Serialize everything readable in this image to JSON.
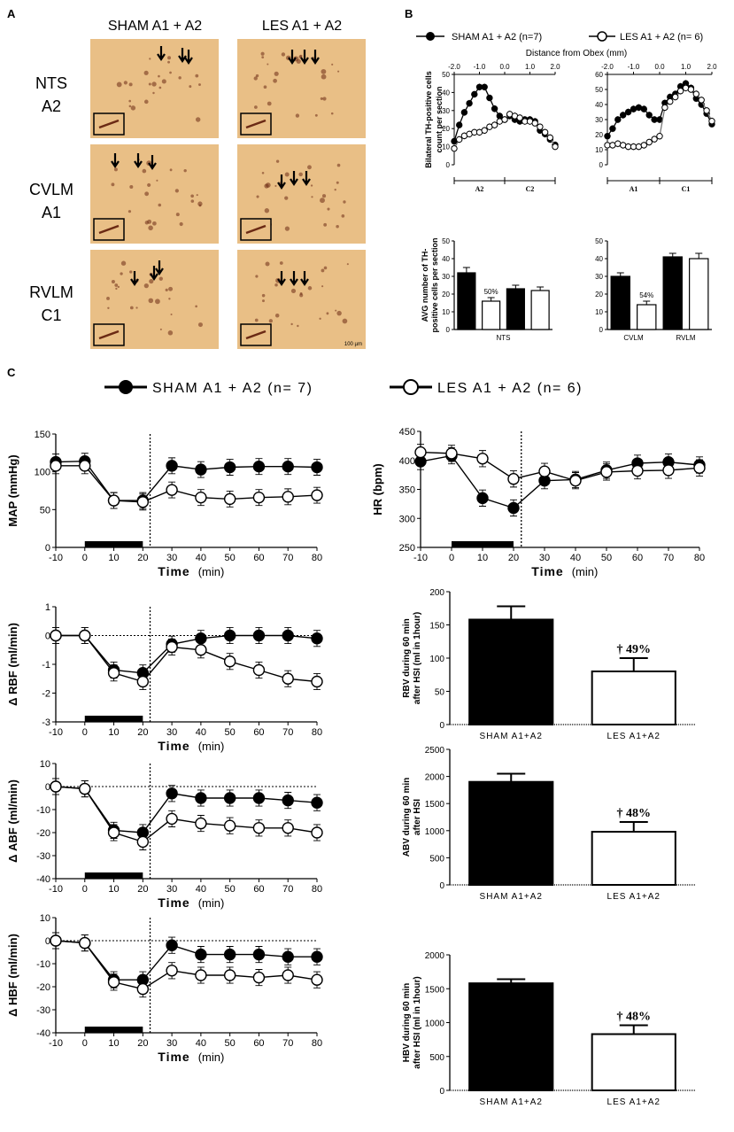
{
  "panels": {
    "a": "A",
    "b": "B",
    "c": "C"
  },
  "micro": {
    "col_headers": [
      "SHAM A1 + A2",
      "LES A1 + A2"
    ],
    "row_labels": [
      [
        "NTS",
        "A2"
      ],
      [
        "CVLM",
        "A1"
      ],
      [
        "RVLM",
        "C1"
      ]
    ],
    "scale_bar": "100 µm",
    "colors": {
      "tissue": "#e9bf86",
      "stain": "#6b2a14"
    }
  },
  "legend_b": {
    "sham": "SHAM A1 + A2 (n=7)",
    "les": "LES A1 + A2 (n= 6)",
    "distance_title": "Distance from Obex (mm)"
  },
  "legend_c": {
    "sham": "SHAM A1 + A2 (n= 7)",
    "les": "LES A1 + A2 (n= 6)"
  },
  "chart_data": [
    {
      "id": "b_profile_left",
      "type": "line",
      "ylabel": "Bilateral TH-positive cells count per section",
      "x": [
        -2.0,
        -1.8,
        -1.6,
        -1.4,
        -1.2,
        -1.0,
        -0.8,
        -0.6,
        -0.4,
        -0.2,
        0.0,
        0.2,
        0.4,
        0.6,
        0.8,
        1.0,
        1.2,
        1.4,
        1.6,
        1.8,
        2.0
      ],
      "xticks": [
        "-2.0",
        "-1.0",
        "0.0",
        "1.0",
        "2.0"
      ],
      "ylim": [
        0,
        50
      ],
      "yticks": [
        0,
        10,
        20,
        30,
        40,
        50
      ],
      "region_labels": [
        "A2",
        "C2"
      ],
      "series": [
        {
          "name": "SHAM A1 + A2 (n=7)",
          "values": [
            13,
            22,
            29,
            34,
            39,
            43,
            43,
            37,
            31,
            27,
            25,
            27,
            25,
            24,
            25,
            25,
            24,
            19,
            17,
            14,
            11
          ]
        },
        {
          "name": "LES A1 + A2 (n= 6)",
          "values": [
            9,
            14,
            16,
            17,
            18,
            18,
            19,
            21,
            22,
            24,
            25,
            28,
            27,
            26,
            24,
            24,
            23,
            21,
            18,
            15,
            10
          ]
        }
      ]
    },
    {
      "id": "b_profile_right",
      "type": "line",
      "x": [
        -2.0,
        -1.8,
        -1.6,
        -1.4,
        -1.2,
        -1.0,
        -0.8,
        -0.6,
        -0.4,
        -0.2,
        0.0,
        0.2,
        0.4,
        0.6,
        0.8,
        1.0,
        1.2,
        1.4,
        1.6,
        1.8,
        2.0
      ],
      "xticks": [
        "-2.0",
        "-1.0",
        "0.0",
        "1.0",
        "2.0"
      ],
      "ylim": [
        0,
        60
      ],
      "yticks": [
        0,
        10,
        20,
        30,
        40,
        50,
        60
      ],
      "region_labels": [
        "A1",
        "C1"
      ],
      "series": [
        {
          "name": "SHAM A1 + A2 (n=7)",
          "values": [
            19,
            24,
            30,
            33,
            35,
            37,
            38,
            37,
            33,
            30,
            30,
            41,
            45,
            47,
            52,
            54,
            51,
            44,
            40,
            34,
            27
          ]
        },
        {
          "name": "LES A1 + A2 (n= 6)",
          "values": [
            13,
            13,
            14,
            13,
            12,
            12,
            12,
            13,
            15,
            17,
            19,
            38,
            42,
            45,
            49,
            51,
            50,
            47,
            43,
            36,
            29
          ]
        }
      ]
    },
    {
      "id": "b_avg_left",
      "type": "bar",
      "ylabel": "AVG number of TH-positive cells per section",
      "group_label": "NTS",
      "values": [
        32,
        16,
        23,
        22
      ],
      "errors": [
        3,
        2,
        2,
        2
      ],
      "ylim": [
        0,
        50
      ],
      "yticks": [
        0,
        10,
        20,
        30,
        40,
        50
      ],
      "annotation": "50%"
    },
    {
      "id": "b_avg_right",
      "type": "bar",
      "group_labels": [
        "CVLM",
        "RVLM"
      ],
      "values": [
        30,
        14,
        41,
        40
      ],
      "errors": [
        2,
        2,
        2,
        3
      ],
      "ylim": [
        0,
        50
      ],
      "yticks": [
        0,
        10,
        20,
        30,
        40,
        50
      ],
      "annotation": "54%"
    },
    {
      "id": "c_map",
      "type": "line",
      "ylabel": "MAP (mmHg)",
      "xlabel": "Time (min)",
      "x": [
        -10,
        0,
        10,
        20,
        30,
        40,
        50,
        60,
        70,
        80
      ],
      "ylim": [
        0,
        150
      ],
      "yticks": [
        0,
        50,
        100,
        150
      ],
      "series": [
        {
          "name": "SHAM A1 + A2 (n= 7)",
          "values": [
            113,
            114,
            62,
            62,
            108,
            103,
            106,
            107,
            107,
            106
          ]
        },
        {
          "name": "LES A1 + A2 (n= 6)",
          "values": [
            108,
            108,
            62,
            60,
            76,
            66,
            64,
            66,
            67,
            69
          ]
        }
      ]
    },
    {
      "id": "c_hr",
      "type": "line",
      "ylabel": "HR (bpm)",
      "xlabel": "Time (min)",
      "x": [
        -10,
        0,
        10,
        20,
        30,
        40,
        50,
        60,
        70,
        80
      ],
      "ylim": [
        250,
        450
      ],
      "yticks": [
        250,
        300,
        350,
        400,
        450
      ],
      "series": [
        {
          "name": "SHAM A1 + A2 (n= 7)",
          "values": [
            398,
            408,
            335,
            318,
            365,
            367,
            383,
            395,
            397,
            392
          ]
        },
        {
          "name": "LES A1 + A2 (n= 6)",
          "values": [
            414,
            412,
            403,
            368,
            381,
            365,
            380,
            382,
            383,
            387
          ]
        }
      ]
    },
    {
      "id": "c_rbf",
      "type": "line",
      "ylabel": "Δ RBF (ml/min)",
      "xlabel": "Time (min)",
      "x": [
        -10,
        0,
        10,
        20,
        30,
        40,
        50,
        60,
        70,
        80
      ],
      "ylim": [
        -3,
        1
      ],
      "yticks": [
        -3,
        -2,
        -1,
        0,
        1
      ],
      "series": [
        {
          "name": "SHAM A1 + A2 (n= 7)",
          "values": [
            0,
            0,
            -1.2,
            -1.3,
            -0.3,
            -0.1,
            0,
            0,
            0,
            -0.1
          ]
        },
        {
          "name": "LES A1 + A2 (n= 6)",
          "values": [
            0,
            0,
            -1.3,
            -1.6,
            -0.4,
            -0.5,
            -0.9,
            -1.2,
            -1.5,
            -1.6
          ]
        }
      ]
    },
    {
      "id": "c_rbv",
      "type": "bar",
      "ylabel": "RBV during 60 min after HSI (ml in 1hour)",
      "categories": [
        "SHAM A1+A2",
        "LES A1+A2"
      ],
      "values": [
        158,
        80
      ],
      "errors": [
        20,
        20
      ],
      "ylim": [
        0,
        200
      ],
      "yticks": [
        0,
        50,
        100,
        150,
        200
      ],
      "annotation": "† 49%"
    },
    {
      "id": "c_abf",
      "type": "line",
      "ylabel": "Δ ABF (ml/min)",
      "xlabel": "Time (min)",
      "x": [
        -10,
        0,
        10,
        20,
        30,
        40,
        50,
        60,
        70,
        80
      ],
      "ylim": [
        -40,
        10
      ],
      "yticks": [
        -40,
        -30,
        -20,
        -10,
        0,
        10
      ],
      "series": [
        {
          "name": "SHAM A1 + A2 (n= 7)",
          "values": [
            0,
            -1,
            -19,
            -20,
            -3,
            -5,
            -5,
            -5,
            -6,
            -7
          ]
        },
        {
          "name": "LES A1 + A2 (n= 6)",
          "values": [
            0,
            -1,
            -20,
            -24,
            -14,
            -16,
            -17,
            -18,
            -18,
            -20
          ]
        }
      ]
    },
    {
      "id": "c_abv",
      "type": "bar",
      "ylabel": "ABV during 60 min after HSI",
      "categories": [
        "SHAM A1+A2",
        "LES A1+A2"
      ],
      "values": [
        1900,
        980
      ],
      "errors": [
        150,
        180
      ],
      "ylim": [
        0,
        2500
      ],
      "yticks": [
        0,
        500,
        1000,
        1500,
        2000,
        2500
      ],
      "annotation": "† 48%"
    },
    {
      "id": "c_hbf",
      "type": "line",
      "ylabel": "Δ HBF (ml/min)",
      "xlabel": "Time (min)",
      "x": [
        -10,
        0,
        10,
        20,
        30,
        40,
        50,
        60,
        70,
        80
      ],
      "ylim": [
        -40,
        10
      ],
      "yticks": [
        -40,
        -30,
        -20,
        -10,
        0,
        10
      ],
      "series": [
        {
          "name": "SHAM A1 + A2 (n= 7)",
          "values": [
            0,
            -1,
            -17,
            -17,
            -2,
            -6,
            -6,
            -6,
            -7,
            -7
          ]
        },
        {
          "name": "LES A1 + A2 (n= 6)",
          "values": [
            0,
            -1,
            -18,
            -21,
            -13,
            -15,
            -15,
            -16,
            -15,
            -17
          ]
        }
      ]
    },
    {
      "id": "c_hbv",
      "type": "bar",
      "ylabel": "HBV during 60 min after HSI (ml in 1hour)",
      "categories": [
        "SHAM A1+A2",
        "LES A1+A2"
      ],
      "values": [
        1580,
        830
      ],
      "errors": [
        60,
        130
      ],
      "ylim": [
        0,
        2000
      ],
      "yticks": [
        0,
        500,
        1000,
        1500,
        2000
      ],
      "annotation": "† 48%"
    }
  ]
}
